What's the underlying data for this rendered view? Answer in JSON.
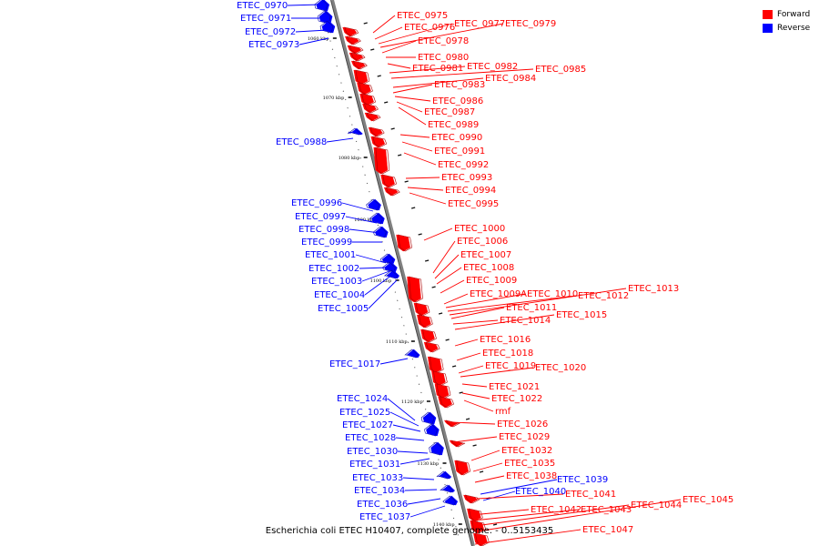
{
  "legend": {
    "forward_label": "Forward",
    "reverse_label": "Reverse",
    "forward_color": "#ff0000",
    "reverse_color": "#0000ff"
  },
  "caption": "Escherichia coli ETEC H10407, complete genome. - 0..5153435",
  "colors": {
    "forward": "#ff0000",
    "reverse": "#0000ff",
    "backbone": "#808080"
  },
  "kbp_ticks": [
    "1060 kbp",
    "1070 kbp",
    "1080 kbp",
    "1090 kbp",
    "1100 kbp",
    "1110 kbp",
    "1120 kbp",
    "1130 kbp",
    "1140 kbp"
  ],
  "reverse_genes": [
    "ETEC_0970",
    "ETEC_0971",
    "ETEC_0972",
    "ETEC_0973",
    "ETEC_0988",
    "ETEC_0996",
    "ETEC_0997",
    "ETEC_0998",
    "ETEC_0999",
    "ETEC_1001",
    "ETEC_1002",
    "ETEC_1003",
    "ETEC_1004",
    "ETEC_1005",
    "ETEC_1017",
    "ETEC_1024",
    "ETEC_1025",
    "ETEC_1027",
    "ETEC_1028",
    "ETEC_1030",
    "ETEC_1031",
    "ETEC_1033",
    "ETEC_1034",
    "ETEC_1036",
    "ETEC_1037",
    "ETEC_1039",
    "ETEC_1040"
  ],
  "forward_genes": [
    "ETEC_0975",
    "ETEC_0976",
    "ETEC_0977",
    "ETEC_0979",
    "ETEC_0978",
    "ETEC_0980",
    "ETEC_0981",
    "ETEC_0982",
    "ETEC_0985",
    "ETEC_0984",
    "ETEC_0983",
    "ETEC_0986",
    "ETEC_0987",
    "ETEC_0989",
    "ETEC_0990",
    "ETEC_0991",
    "ETEC_0992",
    "ETEC_0993",
    "ETEC_0994",
    "ETEC_0995",
    "ETEC_1000",
    "ETEC_1006",
    "ETEC_1007",
    "ETEC_1008",
    "ETEC_1009",
    "ETEC_1009A",
    "ETEC_1010",
    "ETEC_1012",
    "ETEC_1013",
    "ETEC_1011",
    "ETEC_1014",
    "ETEC_1015",
    "ETEC_1016",
    "ETEC_1018",
    "ETEC_1019",
    "ETEC_1020",
    "ETEC_1021",
    "ETEC_1022",
    "rmf",
    "ETEC_1026",
    "ETEC_1029",
    "ETEC_1032",
    "ETEC_1035",
    "ETEC_1038",
    "ETEC_1041",
    "ETEC_1042",
    "ETEC_1043",
    "ETEC_1044",
    "ETEC_1045",
    "ETEC_1047"
  ]
}
